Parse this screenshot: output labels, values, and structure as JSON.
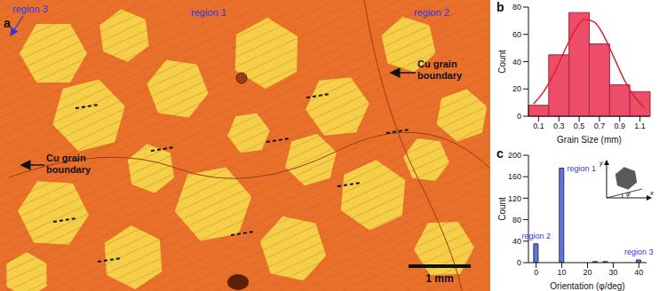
{
  "chart_data": [
    {
      "type": "image",
      "panel": "a",
      "labels": [
        "region 3",
        "region 1",
        "region 2"
      ],
      "annotations": [
        "Cu grain\nboundary",
        "Cu grain\nboundary"
      ],
      "scale_bar": "1 mm"
    },
    {
      "type": "histogram",
      "panel": "b",
      "x_label": "Grain Size (mm)",
      "y_label": "Count",
      "bins": [
        0,
        0.2,
        0.4,
        0.6,
        0.8,
        1.0,
        1.2
      ],
      "values": [
        8,
        45,
        76,
        53,
        23,
        18
      ],
      "color": "#ee4d6a",
      "xlim": [
        0,
        1.2
      ],
      "xticks": [
        0.1,
        0.3,
        0.5,
        0.7,
        0.9,
        1.1
      ],
      "ylim": [
        0,
        80
      ],
      "yticks": [
        0,
        20,
        40,
        60,
        80
      ],
      "fit": {
        "x": [
          0.05,
          0.15,
          0.25,
          0.35,
          0.45,
          0.55,
          0.65,
          0.75,
          0.85,
          0.95,
          1.05,
          1.15
        ],
        "values": [
          9,
          18,
          31,
          47,
          62,
          71,
          69,
          58,
          42,
          26,
          14,
          6
        ],
        "color": "#d8232f"
      }
    },
    {
      "type": "bar",
      "panel": "c",
      "x_label": "Orientation (φ/deg)",
      "y_label": "Count",
      "x": [
        0,
        10,
        23,
        27,
        40
      ],
      "values": [
        35,
        176,
        2,
        2,
        5
      ],
      "color": "#6674d8",
      "xlim": [
        -3,
        43
      ],
      "xticks": [
        0,
        10,
        20,
        30,
        40
      ],
      "ylim": [
        0,
        200
      ],
      "yticks": [
        0,
        40,
        80,
        120,
        160,
        200
      ],
      "annotations": [
        {
          "text": "region 2",
          "x": 0
        },
        {
          "text": "region 1",
          "x": 10
        },
        {
          "text": "region 3",
          "x": 40
        }
      ],
      "inset": {
        "x_label": "x",
        "y_label": "y",
        "angle_label": "φ"
      }
    }
  ]
}
